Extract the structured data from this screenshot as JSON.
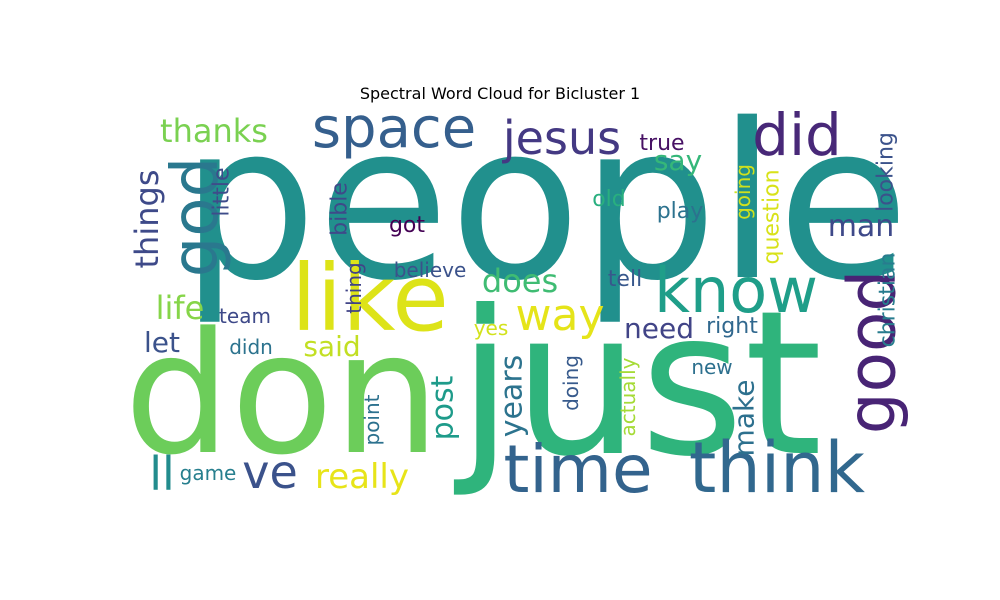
{
  "chart_data": {
    "type": "wordcloud",
    "title": "Spectral Word Cloud for Bicluster 1",
    "colormap": "viridis",
    "background": "#ffffff",
    "words": [
      {
        "text": "people",
        "rank": 1,
        "color": "#21908d"
      },
      {
        "text": "just",
        "rank": 2,
        "color": "#2fb47c"
      },
      {
        "text": "don",
        "rank": 3,
        "color": "#6ccd5a"
      },
      {
        "text": "like",
        "rank": 4,
        "color": "#dde318"
      },
      {
        "text": "think",
        "rank": 5,
        "color": "#31688e"
      },
      {
        "text": "time",
        "rank": 6,
        "color": "#33638d"
      },
      {
        "text": "know",
        "rank": 7,
        "color": "#1f9e89"
      },
      {
        "text": "good",
        "rank": 8,
        "color": "#482475"
      },
      {
        "text": "god",
        "rank": 9,
        "color": "#2a788e"
      },
      {
        "text": "space",
        "rank": 10,
        "color": "#355f8d"
      },
      {
        "text": "did",
        "rank": 11,
        "color": "#482878"
      },
      {
        "text": "jesus",
        "rank": 12,
        "color": "#443983"
      },
      {
        "text": "ve",
        "rank": 13,
        "color": "#3b528b"
      },
      {
        "text": "way",
        "rank": 14,
        "color": "#e5e419"
      },
      {
        "text": "ll",
        "rank": 15,
        "color": "#228c8d"
      },
      {
        "text": "really",
        "rank": 16,
        "color": "#e7e419"
      },
      {
        "text": "thanks",
        "rank": 17,
        "color": "#7ad151"
      },
      {
        "text": "things",
        "rank": 18,
        "color": "#3e4a89"
      },
      {
        "text": "does",
        "rank": 19,
        "color": "#3fbc73"
      },
      {
        "text": "life",
        "rank": 20,
        "color": "#86d549"
      },
      {
        "text": "man",
        "rank": 21,
        "color": "#3e4989"
      },
      {
        "text": "years",
        "rank": 22,
        "color": "#2c738e"
      },
      {
        "text": "post",
        "rank": 23,
        "color": "#1e9b8a"
      },
      {
        "text": "say",
        "rank": 24,
        "color": "#35b779"
      },
      {
        "text": "need",
        "rank": 25,
        "color": "#414487"
      },
      {
        "text": "said",
        "rank": 26,
        "color": "#c2df23"
      },
      {
        "text": "let",
        "rank": 27,
        "color": "#3b528b"
      },
      {
        "text": "make",
        "rank": 28,
        "color": "#2d708e"
      },
      {
        "text": "looking",
        "rank": 29,
        "color": "#3b528b"
      },
      {
        "text": "christian",
        "rank": 30,
        "color": "#287c8e"
      },
      {
        "text": "question",
        "rank": 31,
        "color": "#d8e219"
      },
      {
        "text": "true",
        "rank": 32,
        "color": "#471164"
      },
      {
        "text": "bible",
        "rank": 33,
        "color": "#3e4a89"
      },
      {
        "text": "little",
        "rank": 34,
        "color": "#3e4c8a"
      },
      {
        "text": "got",
        "rank": 35,
        "color": "#440154"
      },
      {
        "text": "old",
        "rank": 36,
        "color": "#29af7f"
      },
      {
        "text": "play",
        "rank": 37,
        "color": "#2c728e"
      },
      {
        "text": "going",
        "rank": 38,
        "color": "#d0e11c"
      },
      {
        "text": "believe",
        "rank": 39,
        "color": "#3b528b"
      },
      {
        "text": "tell",
        "rank": 40,
        "color": "#38588c"
      },
      {
        "text": "thing",
        "rank": 41,
        "color": "#414487"
      },
      {
        "text": "team",
        "rank": 42,
        "color": "#3e4989"
      },
      {
        "text": "right",
        "rank": 43,
        "color": "#31688e"
      },
      {
        "text": "yes",
        "rank": 44,
        "color": "#d2e21b"
      },
      {
        "text": "didn",
        "rank": 45,
        "color": "#2c738e"
      },
      {
        "text": "point",
        "rank": 46,
        "color": "#2c718e"
      },
      {
        "text": "doing",
        "rank": 47,
        "color": "#375a8c"
      },
      {
        "text": "actually",
        "rank": 48,
        "color": "#a5db36"
      },
      {
        "text": "new",
        "rank": 49,
        "color": "#2d708e"
      },
      {
        "text": "game",
        "rank": 50,
        "color": "#277f8e"
      }
    ]
  }
}
